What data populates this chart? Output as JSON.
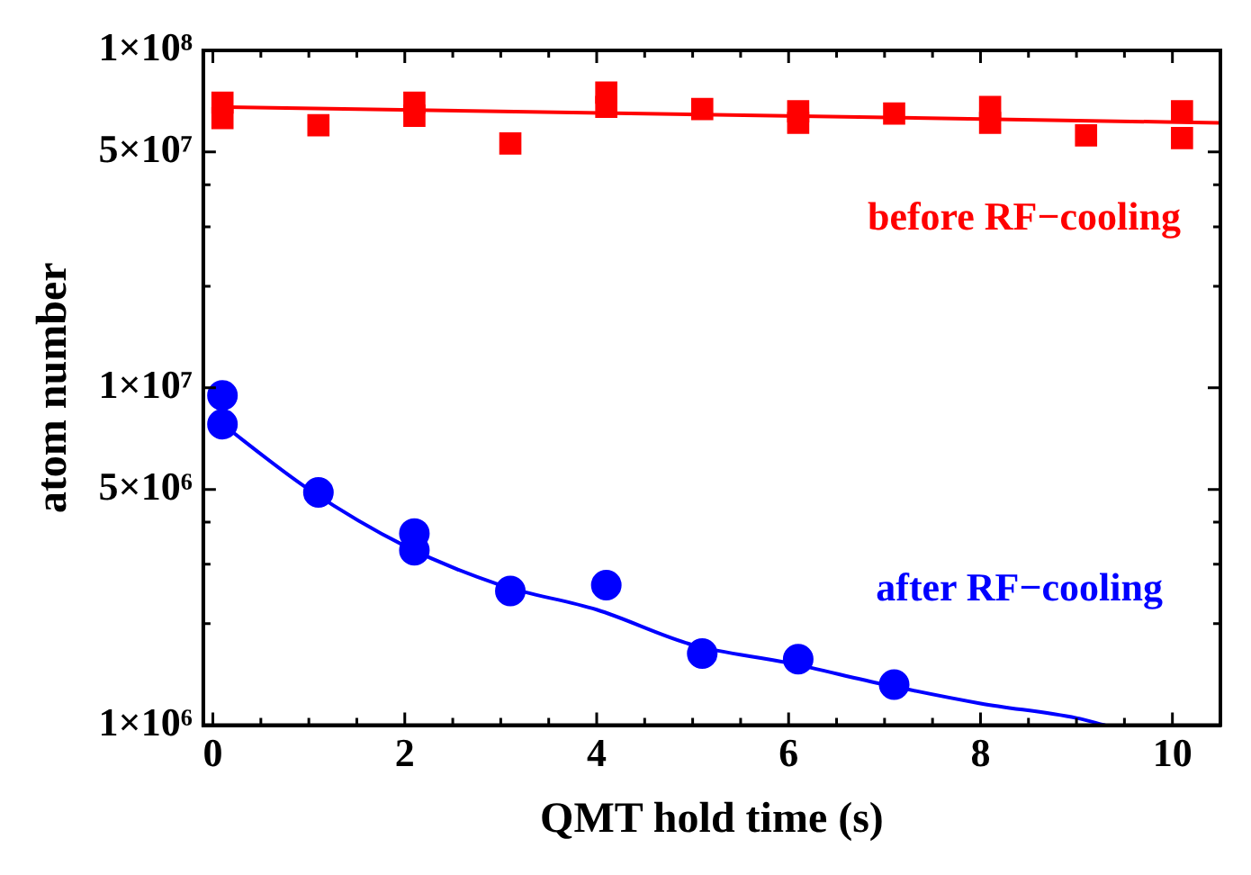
{
  "chart_data": {
    "type": "scatter",
    "xlabel": "QMT hold time (s)",
    "ylabel": "atom number",
    "log": "y",
    "grid": false,
    "legend": false,
    "xlim": [
      -0.1,
      10.5
    ],
    "xticks": [
      0,
      {
        "value": 0.5,
        "label": null
      },
      {
        "value": 1,
        "label": null
      },
      {
        "value": 1.5,
        "label": null
      },
      2,
      {
        "value": 2.5,
        "label": null
      },
      {
        "value": 3,
        "label": null
      },
      {
        "value": 3.5,
        "label": null
      },
      4,
      {
        "value": 4.5,
        "label": null
      },
      {
        "value": 5,
        "label": null
      },
      {
        "value": 5.5,
        "label": null
      },
      6,
      {
        "value": 6.5,
        "label": null
      },
      {
        "value": 7,
        "label": null
      },
      {
        "value": 7.5,
        "label": null
      },
      8,
      {
        "value": 8.5,
        "label": null
      },
      {
        "value": 9,
        "label": null
      },
      {
        "value": 9.5,
        "label": null
      },
      10
    ],
    "ylim": [
      1000000,
      100000000
    ],
    "yticks": [
      {
        "value": 1000000,
        "label": "1×10⁶"
      },
      {
        "value": 2000000,
        "label": null
      },
      {
        "value": 3000000,
        "label": null
      },
      {
        "value": 4000000,
        "label": null
      },
      {
        "value": 5000000,
        "label": "5×10⁶"
      },
      {
        "value": 10000000,
        "label": "1×10⁷"
      },
      {
        "value": 20000000,
        "label": null
      },
      {
        "value": 30000000,
        "label": null
      },
      {
        "value": 40000000,
        "label": null
      },
      {
        "value": 50000000,
        "label": "5×10⁷"
      },
      {
        "value": 100000000,
        "label": "1×10⁸"
      }
    ],
    "series": [
      {
        "name": "before RF−cooling",
        "marker": "square",
        "color": "#ff0000",
        "x": [
          0.1,
          0.1,
          1.1,
          2.1,
          2.1,
          3.1,
          4.1,
          4.1,
          5.1,
          6.1,
          6.1,
          7.1,
          8.1,
          8.1,
          9.1,
          10.1,
          10.1
        ],
        "values": [
          70000000,
          63000000,
          60000000,
          70000000,
          64000000,
          53000000,
          75000000,
          68000000,
          67000000,
          66000000,
          61000000,
          65000000,
          68000000,
          61000000,
          56000000,
          66000000,
          55000000
        ]
      },
      {
        "type": "line",
        "marker": "none",
        "color": "#ff0000",
        "x": [
          0,
          10.5
        ],
        "values": [
          68000000,
          61000000
        ]
      },
      {
        "name": "after RF−cooling",
        "marker": "circle",
        "color": "#0000ff",
        "x": [
          0.1,
          0.1,
          1.1,
          2.1,
          2.1,
          3.1,
          4.1,
          5.1,
          6.1,
          7.1
        ],
        "values": [
          9500000,
          7800000,
          4900000,
          3700000,
          3300000,
          2500000,
          2600000,
          1630000,
          1570000,
          1320000
        ]
      },
      {
        "type": "line",
        "marker": "none",
        "color": "#0000ff",
        "x": [
          0,
          1,
          2,
          3,
          4,
          5,
          6,
          7,
          8,
          9,
          9.3
        ],
        "values": [
          8200000,
          5000000,
          3400000,
          2600000,
          2200000,
          1730000,
          1530000,
          1320000,
          1160000,
          1050000,
          1000000
        ]
      }
    ]
  }
}
